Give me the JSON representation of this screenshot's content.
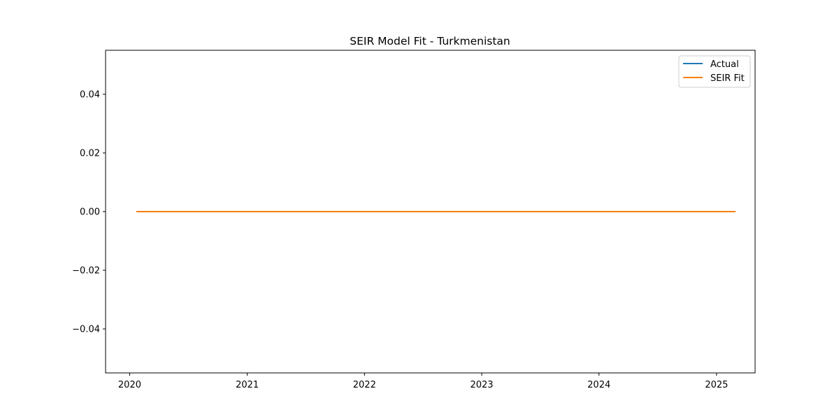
{
  "chart_data": {
    "type": "line",
    "title": "SEIR Model Fit - Turkmenistan",
    "xlabel": "",
    "ylabel": "",
    "x_ticks": [
      "2020",
      "2021",
      "2022",
      "2023",
      "2024",
      "2025"
    ],
    "y_ticks": [
      "−0.04",
      "−0.02",
      "0.00",
      "0.02",
      "0.04"
    ],
    "y_tick_values": [
      -0.04,
      -0.02,
      0.0,
      0.02,
      0.04
    ],
    "xlim": [
      "2019-10-18",
      "2025-05-01"
    ],
    "ylim": [
      -0.055,
      0.055
    ],
    "grid": false,
    "legend_position": "upper right",
    "series": [
      {
        "name": "Actual",
        "color": "#1f77b4",
        "x": [
          "2020-01-22",
          "2025-03-01"
        ],
        "y": [
          0,
          0
        ]
      },
      {
        "name": "SEIR Fit",
        "color": "#ff7f0e",
        "x": [
          "2020-01-22",
          "2025-03-01"
        ],
        "y": [
          0,
          0
        ]
      }
    ]
  }
}
